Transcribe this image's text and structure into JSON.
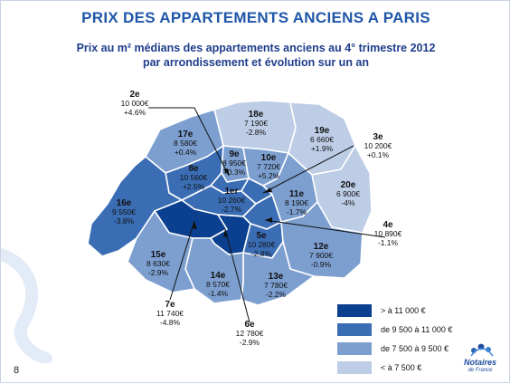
{
  "title": "PRIX DES APPARTEMENTS ANCIENS A PARIS",
  "subtitle_line1": "Prix au m² médians des appartements anciens au 4° trimestre 2012",
  "subtitle_line2": "par arrondissement et évolution sur un an",
  "page_number": "8",
  "logo": {
    "name": "Notaires",
    "sub": "de France",
    "icon": "notaires-logo-icon"
  },
  "colors": {
    "tier1": "#0b3f8f",
    "tier2": "#3a6db4",
    "tier3": "#7c9fd0",
    "tier4": "#bdcde6",
    "border": "#ffffff",
    "title": "#1f56a8"
  },
  "legend": [
    {
      "label": "> à 11 000 €",
      "tier": "tier1"
    },
    {
      "label": "de 9 500 à 11 000 €",
      "tier": "tier2"
    },
    {
      "label": "de 7 500 à  9 500 €",
      "tier": "tier3"
    },
    {
      "label": "< à 7 500 €",
      "tier": "tier4"
    }
  ],
  "arrondissements": [
    {
      "id": "1er",
      "price": "10 260€",
      "change": "-2.7%",
      "tier": "tier2"
    },
    {
      "id": "2e",
      "price": "10 000€",
      "change": "+4.6%",
      "tier": "tier2"
    },
    {
      "id": "3e",
      "price": "10 200€",
      "change": "+0.1%",
      "tier": "tier2"
    },
    {
      "id": "4e",
      "price": "10 890€",
      "change": "-1.1%",
      "tier": "tier2"
    },
    {
      "id": "5e",
      "price": "10 280€",
      "change": "-2.8%",
      "tier": "tier2"
    },
    {
      "id": "6e",
      "price": "12 780€",
      "change": "-2.9%",
      "tier": "tier1"
    },
    {
      "id": "7e",
      "price": "11 740€",
      "change": "-4.8%",
      "tier": "tier1"
    },
    {
      "id": "8e",
      "price": "10 560€",
      "change": "+2.5%",
      "tier": "tier2"
    },
    {
      "id": "9e",
      "price": "8 950€",
      "change": "+0.3%",
      "tier": "tier3"
    },
    {
      "id": "10e",
      "price": "7 720€",
      "change": "+5.2%",
      "tier": "tier3"
    },
    {
      "id": "11e",
      "price": "8 190€",
      "change": "-1.7%",
      "tier": "tier3"
    },
    {
      "id": "12e",
      "price": "7 900€",
      "change": "-0.9%",
      "tier": "tier3"
    },
    {
      "id": "13e",
      "price": "7 780€",
      "change": "-2.2%",
      "tier": "tier3"
    },
    {
      "id": "14e",
      "price": "8 570€",
      "change": "-1.4%",
      "tier": "tier3"
    },
    {
      "id": "15e",
      "price": "8 630€",
      "change": "-2.9%",
      "tier": "tier3"
    },
    {
      "id": "16e",
      "price": "9 550€",
      "change": "-3.8%",
      "tier": "tier2"
    },
    {
      "id": "17e",
      "price": "8 580€",
      "change": "+0.4%",
      "tier": "tier3"
    },
    {
      "id": "18e",
      "price": "7 190€",
      "change": "-2.8%",
      "tier": "tier4"
    },
    {
      "id": "19e",
      "price": "6 660€",
      "change": "+1.9%",
      "tier": "tier4"
    },
    {
      "id": "20e",
      "price": "6 900€",
      "change": "-4%",
      "tier": "tier4"
    }
  ]
}
